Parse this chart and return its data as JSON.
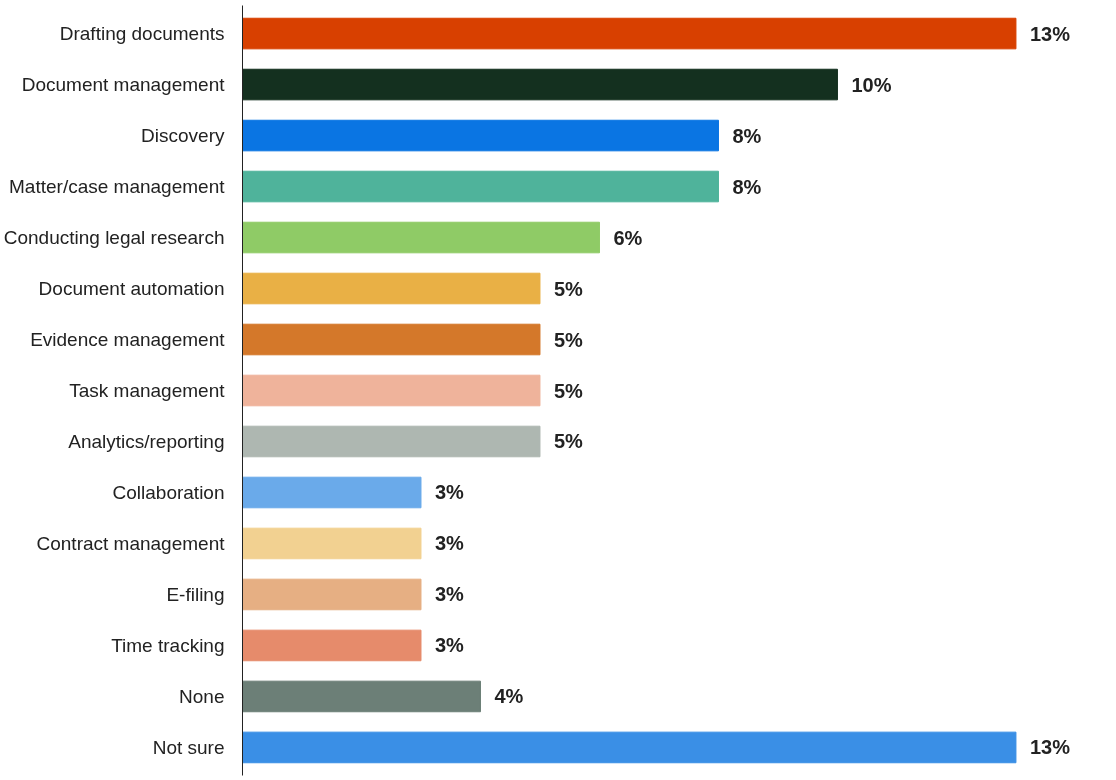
{
  "chart_data": {
    "type": "bar",
    "orientation": "horizontal",
    "grid": false,
    "tick_labels": "y",
    "categories": [
      "Drafting documents",
      "Document management",
      "Discovery",
      "Matter/case management",
      "Conducting legal research",
      "Document automation",
      "Evidence management",
      "Task management",
      "Analytics/reporting",
      "Collaboration",
      "Contract management",
      "E-filing",
      "Time tracking",
      "None",
      "Not sure"
    ],
    "values": [
      13,
      10,
      8,
      8,
      6,
      5,
      5,
      5,
      5,
      3,
      3,
      3,
      3,
      4,
      13
    ],
    "value_labels": [
      "13%",
      "10%",
      "8%",
      "8%",
      "6%",
      "5%",
      "5%",
      "5%",
      "5%",
      "3%",
      "3%",
      "3%",
      "3%",
      "4%",
      "13%"
    ],
    "colors": [
      "#d84000",
      "#14301f",
      "#0a75e3",
      "#4fb39b",
      "#8fcb66",
      "#e9b045",
      "#d4782a",
      "#efb39b",
      "#aeb7b1",
      "#6aaaea",
      "#f2d191",
      "#e6af83",
      "#e68b6b",
      "#6c7f77",
      "#3a8fe6"
    ]
  }
}
